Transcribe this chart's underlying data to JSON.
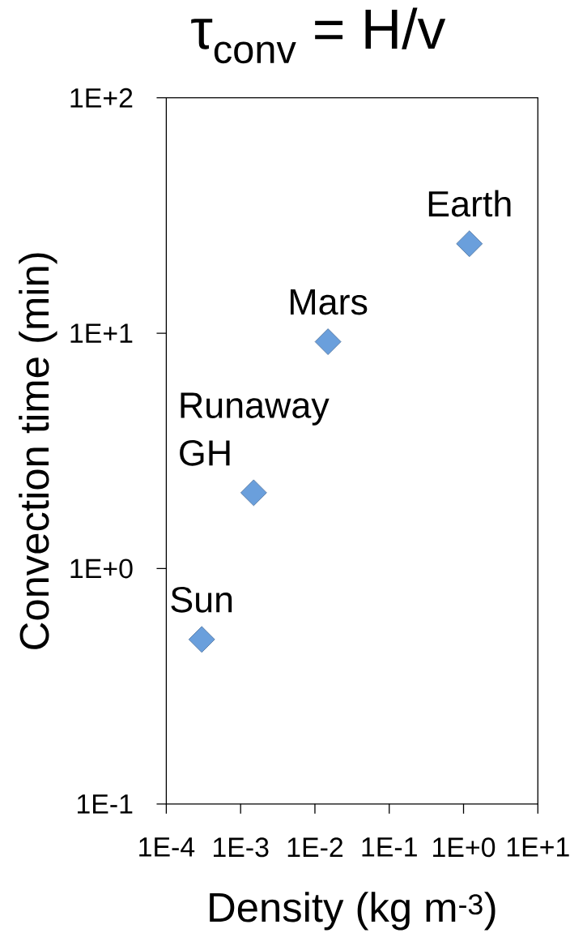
{
  "chart_data": {
    "type": "scatter",
    "title": "τ$_{conv}$ = H/v",
    "xlabel": "Density (kg m$^{-3}$)",
    "ylabel": "Convection time (min)",
    "log": "xy",
    "x": [
      0.0003,
      0.0015,
      0.015,
      1.2
    ],
    "values": [
      0.5,
      2.1,
      9.2,
      24
    ],
    "color": "#6a9fdc",
    "marker": "diamond",
    "xlim": [
      0.0001,
      10
    ],
    "ylim": [
      0.1,
      100
    ],
    "xticks": [
      {
        "value": 0.0001,
        "label": "1E-4"
      },
      {
        "value": 0.001,
        "label": "1E-3"
      },
      {
        "value": 0.01,
        "label": "1E-2"
      },
      {
        "value": 0.1,
        "label": "1E-1"
      },
      {
        "value": 1,
        "label": "1E+0"
      },
      {
        "value": 10,
        "label": "1E+1"
      }
    ],
    "yticks": [
      {
        "value": 0.1,
        "label": "1E-1"
      },
      {
        "value": 1,
        "label": "1E+0"
      },
      {
        "value": 10,
        "label": "1E+1"
      },
      {
        "value": 100,
        "label": "1E+2"
      }
    ],
    "annotations": [
      {
        "text": "Sun",
        "x": 0.0003,
        "y": 0.5
      },
      {
        "text": "Runaway GH",
        "x": 0.0015,
        "y": 2.1
      },
      {
        "text": "Mars",
        "x": 0.015,
        "y": 9.2
      },
      {
        "text": "Earth",
        "x": 1.2,
        "y": 24
      }
    ]
  }
}
